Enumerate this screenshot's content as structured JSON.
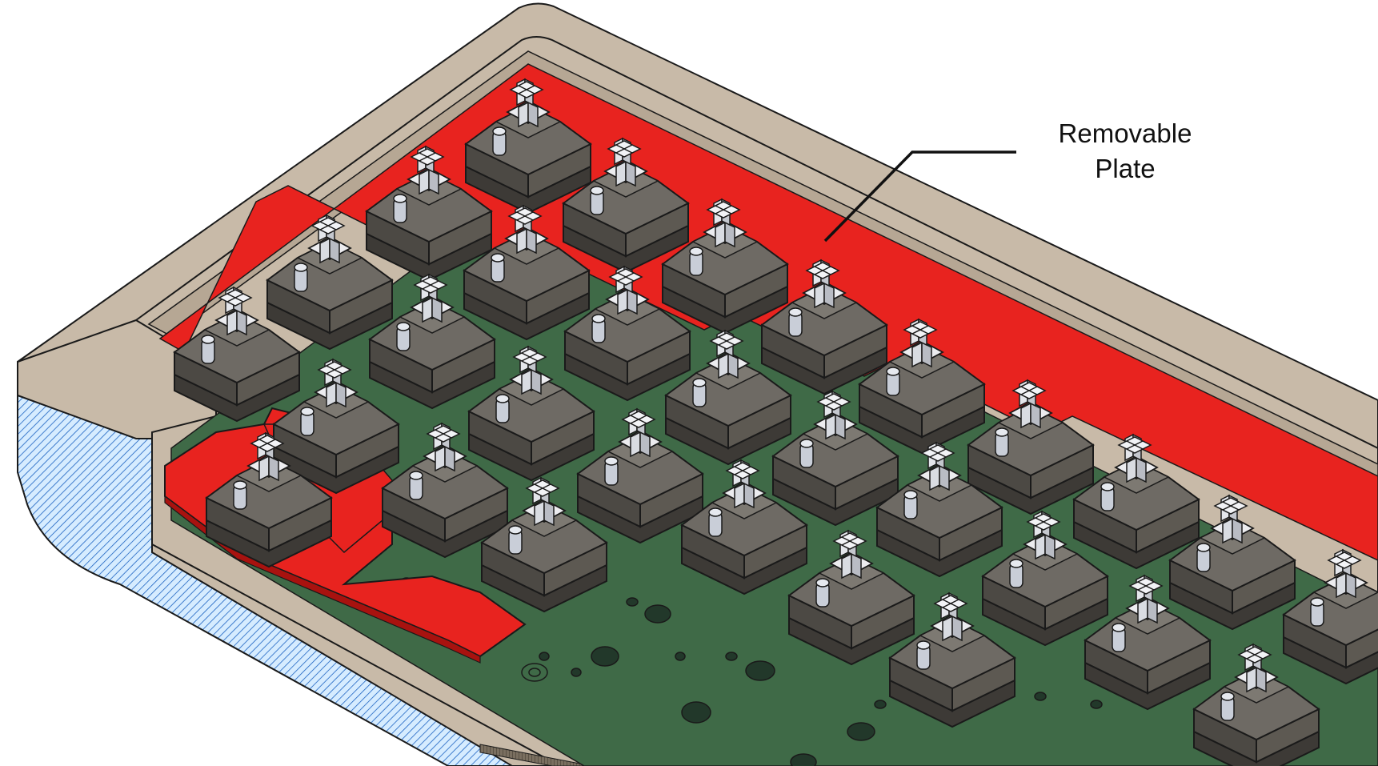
{
  "callout": {
    "line1": "Removable",
    "line2": "Plate"
  },
  "colors": {
    "case": "#c8baa8",
    "case_edge": "#8d8170",
    "case_inner": "#b6a794",
    "section_fill": "#d6ecff",
    "section_hatch": "#1c63c2",
    "plate": "#e8231f",
    "plate_dark": "#a8120f",
    "pcb": "#3f6a47",
    "switch_housing": "#5a5650",
    "switch_top": "#6e6a64",
    "stem": "#d9dce2",
    "led": "#c9ced8",
    "outline": "#1a1a1a"
  },
  "icons": {
    "switch": "mechanical-switch-icon",
    "stabilizer": "stabilizer-icon"
  }
}
